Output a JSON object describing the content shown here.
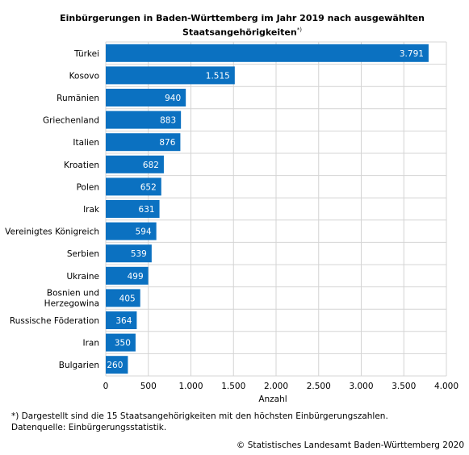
{
  "header": {
    "title_line1": "Einbürgerungen in Baden-Württemberg im Jahr 2019 nach ausgewählten",
    "title_line2": "Staatsangehörigkeiten",
    "title_mark": "*)"
  },
  "chart_data": {
    "type": "bar",
    "orientation": "horizontal",
    "title": "Einbürgerungen in Baden-Württemberg im Jahr 2019 nach ausgewählten Staatsangehörigkeiten*)",
    "categories": [
      "Türkei",
      "Kosovo",
      "Rumänien",
      "Griechenland",
      "Italien",
      "Kroatien",
      "Polen",
      "Irak",
      "Vereinigtes Königreich",
      "Serbien",
      "Ukraine",
      "Bosnien und Herzegowina",
      "Russische Föderation",
      "Iran",
      "Bulgarien"
    ],
    "values": [
      3791,
      1515,
      940,
      883,
      876,
      682,
      652,
      631,
      594,
      539,
      499,
      405,
      364,
      350,
      260
    ],
    "value_labels": [
      "3.791",
      "1.515",
      "940",
      "883",
      "876",
      "682",
      "652",
      "631",
      "594",
      "539",
      "499",
      "405",
      "364",
      "350",
      "260"
    ],
    "xlabel": "Anzahl",
    "ylabel": "",
    "xlim": [
      0,
      4000
    ],
    "xticks": [
      0,
      500,
      1000,
      1500,
      2000,
      2500,
      3000,
      3500,
      4000
    ],
    "xtick_labels": [
      "0",
      "500",
      "1.000",
      "1.500",
      "2.000",
      "2.500",
      "3.000",
      "3.500",
      "4.000"
    ],
    "grid": true,
    "legend": "none",
    "bar_color": "#0b71c1",
    "grid_color": "#d4d4d4"
  },
  "footer": {
    "footnote_line1": "*) Dargestellt sind die 15 Staatsangehörigkeiten mit den höchsten Einbürgerungszahlen.",
    "footnote_line2": "Datenquelle: Einbürgerungsstatistik.",
    "copyright": "© Statistisches Landesamt Baden-Württemberg 2020"
  }
}
